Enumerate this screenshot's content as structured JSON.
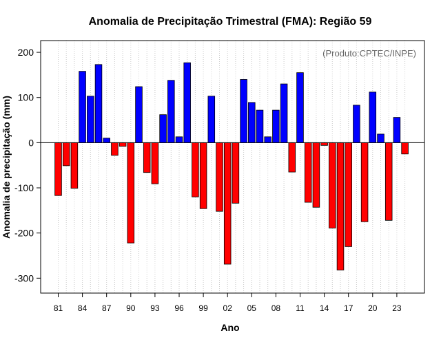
{
  "chart_data": {
    "type": "bar",
    "title": "Anomalia de Precipitação Trimestral (FMA): Região 59",
    "credit": "(Produto:CPTEC/INPE)",
    "xlabel": "Ano",
    "ylabel": "Anomalia de precipitação (mm)",
    "ylim": [
      -333,
      226
    ],
    "yticks": [
      200,
      100,
      0,
      -100,
      -200,
      -300
    ],
    "ytick_labels": [
      "200",
      "100",
      "0",
      "-100",
      "-200",
      "-300"
    ],
    "xtick_labels": [
      "81",
      "84",
      "87",
      "90",
      "93",
      "96",
      "99",
      "02",
      "05",
      "08",
      "11",
      "14",
      "17",
      "20",
      "23"
    ],
    "xtick_every": 3,
    "grid": true,
    "positive_color": "#0000ff",
    "negative_color": "#ff0000",
    "categories": [
      "1981",
      "1982",
      "1983",
      "1984",
      "1985",
      "1986",
      "1987",
      "1988",
      "1989",
      "1990",
      "1991",
      "1992",
      "1993",
      "1994",
      "1995",
      "1996",
      "1997",
      "1998",
      "1999",
      "2000",
      "2001",
      "2002",
      "2003",
      "2004",
      "2005",
      "2006",
      "2007",
      "2008",
      "2009",
      "2010",
      "2011",
      "2012",
      "2013",
      "2014",
      "2015",
      "2016",
      "2017",
      "2018",
      "2019",
      "2020",
      "2021",
      "2022",
      "2023",
      "2024"
    ],
    "values": [
      -117,
      -51,
      -101,
      158,
      103,
      173,
      10,
      -28,
      -8,
      -222,
      124,
      -66,
      -91,
      62,
      138,
      13,
      177,
      -120,
      -146,
      103,
      -152,
      -269,
      -134,
      140,
      89,
      72,
      13,
      72,
      130,
      -65,
      155,
      -132,
      -143,
      -6,
      -189,
      -282,
      -230,
      83,
      -175,
      112,
      19,
      -172,
      56,
      -25
    ]
  }
}
